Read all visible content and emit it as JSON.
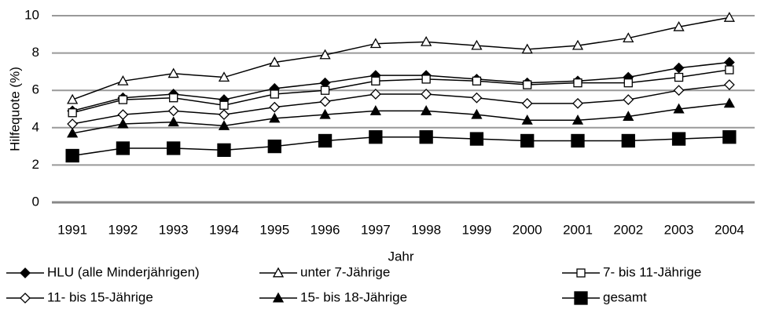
{
  "chart_data": {
    "type": "line",
    "x_label": "Jahr",
    "y_label": "Hilfequote (%)",
    "categories": [
      "1991",
      "1992",
      "1993",
      "1994",
      "1995",
      "1996",
      "1997",
      "1998",
      "1999",
      "2000",
      "2001",
      "2002",
      "2003",
      "2004"
    ],
    "ylim": [
      0,
      10
    ],
    "yticks": [
      0,
      2,
      4,
      6,
      8,
      10
    ],
    "grid": true,
    "series": [
      {
        "name": "HLU (alle Minderjährigen)",
        "color": "#000000",
        "marker": "diamond",
        "filled": true,
        "values": [
          4.9,
          5.6,
          5.8,
          5.5,
          6.1,
          6.4,
          6.8,
          6.8,
          6.6,
          6.4,
          6.5,
          6.7,
          7.2,
          7.5
        ]
      },
      {
        "name": "unter 7-Jährige",
        "color": "#000000",
        "marker": "triangle",
        "filled": false,
        "values": [
          5.5,
          6.5,
          6.9,
          6.7,
          7.5,
          7.9,
          8.5,
          8.6,
          8.4,
          8.2,
          8.4,
          8.8,
          9.4,
          9.9
        ]
      },
      {
        "name": "7- bis 11-Jährige",
        "color": "#000000",
        "marker": "square",
        "filled": false,
        "values": [
          4.8,
          5.5,
          5.6,
          5.2,
          5.8,
          6.0,
          6.5,
          6.6,
          6.5,
          6.3,
          6.4,
          6.4,
          6.7,
          7.1
        ]
      },
      {
        "name": "11- bis 15-Jährige",
        "color": "#000000",
        "marker": "diamond",
        "filled": false,
        "values": [
          4.2,
          4.7,
          4.9,
          4.7,
          5.1,
          5.4,
          5.8,
          5.8,
          5.6,
          5.3,
          5.3,
          5.5,
          6.0,
          6.3
        ]
      },
      {
        "name": "15- bis 18-Jährige",
        "color": "#000000",
        "marker": "triangle",
        "filled": true,
        "values": [
          3.7,
          4.2,
          4.3,
          4.1,
          4.5,
          4.7,
          4.9,
          4.9,
          4.7,
          4.4,
          4.4,
          4.6,
          5.0,
          5.3
        ]
      },
      {
        "name": "gesamt",
        "color": "#000000",
        "marker": "square",
        "filled": true,
        "values": [
          2.5,
          2.9,
          2.9,
          2.8,
          3.0,
          3.3,
          3.5,
          3.5,
          3.4,
          3.3,
          3.3,
          3.3,
          3.4,
          3.5
        ]
      }
    ]
  }
}
